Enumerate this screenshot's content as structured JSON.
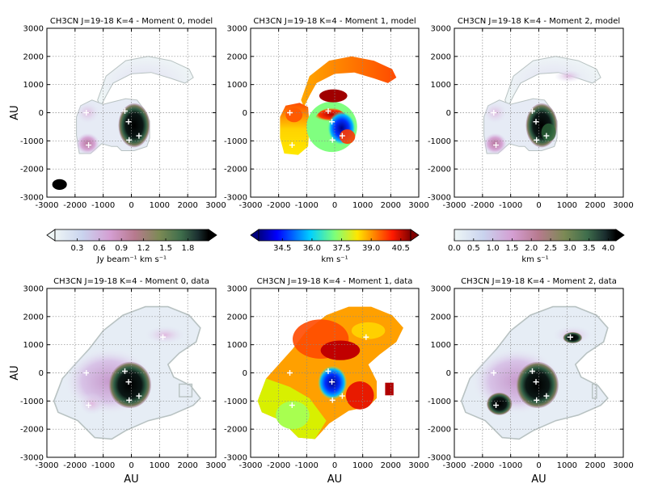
{
  "chart_data": [
    {
      "type": "heatmap",
      "title": "CH3CN J=19-18 K=4 - Moment 0, model",
      "xlabel": "",
      "ylabel": "AU",
      "xlim": [
        -3000,
        3000
      ],
      "ylim": [
        -3000,
        3000
      ],
      "xticks": [
        "-3000",
        "-2000",
        "-1000",
        "0",
        "1000",
        "2000",
        "3000"
      ],
      "yticks": [
        "3000",
        "2000",
        "1000",
        "0",
        "-1000",
        "-2000",
        "-3000"
      ],
      "colormap": "cubehelix-like",
      "beam": true,
      "grid": true
    },
    {
      "type": "heatmap",
      "title": "CH3CN J=19-18 K=4 - Moment 1, model",
      "xlabel": "",
      "ylabel": "",
      "xlim": [
        -3000,
        3000
      ],
      "ylim": [
        -3000,
        3000
      ],
      "xticks": [
        "-3000",
        "-2000",
        "-1000",
        "0",
        "1000",
        "2000",
        "3000"
      ],
      "yticks": [
        "3000",
        "2000",
        "1000",
        "0",
        "-1000",
        "-2000",
        "-3000"
      ],
      "colormap": "jet",
      "grid": true
    },
    {
      "type": "heatmap",
      "title": "CH3CN J=19-18 K=4 - Moment 2, model",
      "xlabel": "",
      "ylabel": "",
      "xlim": [
        -3000,
        3000
      ],
      "ylim": [
        -3000,
        3000
      ],
      "xticks": [
        "-3000",
        "-2000",
        "-1000",
        "0",
        "1000",
        "2000",
        "3000"
      ],
      "yticks": [
        "3000",
        "2000",
        "1000",
        "0",
        "-1000",
        "-2000",
        "-3000"
      ],
      "colormap": "cubehelix-like",
      "grid": true
    },
    {
      "type": "heatmap",
      "title": "CH3CN J=19-18 K=4 - Moment 0, data",
      "xlabel": "AU",
      "ylabel": "AU",
      "xlim": [
        -3000,
        3000
      ],
      "ylim": [
        -3000,
        3000
      ],
      "xticks": [
        "-3000",
        "-2000",
        "-1000",
        "0",
        "1000",
        "2000",
        "3000"
      ],
      "yticks": [
        "3000",
        "2000",
        "1000",
        "0",
        "-1000",
        "-2000",
        "-3000"
      ],
      "colormap": "cubehelix-like",
      "grid": true
    },
    {
      "type": "heatmap",
      "title": "CH3CN J=19-18 K=4 - Moment 1, data",
      "xlabel": "AU",
      "ylabel": "",
      "xlim": [
        -3000,
        3000
      ],
      "ylim": [
        -3000,
        3000
      ],
      "xticks": [
        "-3000",
        "-2000",
        "-1000",
        "0",
        "1000",
        "2000",
        "3000"
      ],
      "yticks": [
        "3000",
        "2000",
        "1000",
        "0",
        "-1000",
        "-2000",
        "-3000"
      ],
      "colormap": "jet",
      "grid": true
    },
    {
      "type": "heatmap",
      "title": "CH3CN J=19-18 K=4 - Moment 2, data",
      "xlabel": "AU",
      "ylabel": "",
      "xlim": [
        -3000,
        3000
      ],
      "ylim": [
        -3000,
        3000
      ],
      "xticks": [
        "-3000",
        "-2000",
        "-1000",
        "0",
        "1000",
        "2000",
        "3000"
      ],
      "yticks": [
        "3000",
        "2000",
        "1000",
        "0",
        "-1000",
        "-2000",
        "-3000"
      ],
      "colormap": "cubehelix-like",
      "grid": true
    }
  ],
  "colorbars": [
    {
      "ticks": [
        "0.3",
        "0.6",
        "0.9",
        "1.2",
        "1.5",
        "1.8"
      ],
      "tick_values": [
        0.3,
        0.6,
        0.9,
        1.2,
        1.5,
        1.8
      ],
      "range": [
        0.0,
        2.08
      ],
      "label": "Jy beam⁻¹ km s⁻¹",
      "extend": "both",
      "cmap": "cubehelix-like"
    },
    {
      "ticks": [
        "34.5",
        "36.0",
        "37.5",
        "39.0",
        "40.5"
      ],
      "tick_values": [
        34.5,
        36.0,
        37.5,
        39.0,
        40.5
      ],
      "range": [
        33.3,
        41.0
      ],
      "label": "km s⁻¹",
      "extend": "both",
      "cmap": "jet"
    },
    {
      "ticks": [
        "0.0",
        "0.5",
        "1.0",
        "1.5",
        "2.0",
        "2.5",
        "3.0",
        "3.5",
        "4.0"
      ],
      "tick_values": [
        0.0,
        0.5,
        1.0,
        1.5,
        2.0,
        2.5,
        3.0,
        3.5,
        4.0
      ],
      "range": [
        0.0,
        4.2
      ],
      "label": "km s⁻¹",
      "extend": "max",
      "cmap": "cubehelix-like"
    }
  ],
  "sources_au": [
    [
      -1600,
      0
    ],
    [
      -1520,
      -1150
    ],
    [
      -230,
      60
    ],
    [
      -100,
      -320
    ],
    [
      270,
      -820
    ],
    [
      -80,
      -970
    ],
    [
      1120,
      1270
    ]
  ],
  "colors": {
    "grid": "#888888",
    "contour": "#b8c2c2",
    "cross": "#ffffff"
  }
}
